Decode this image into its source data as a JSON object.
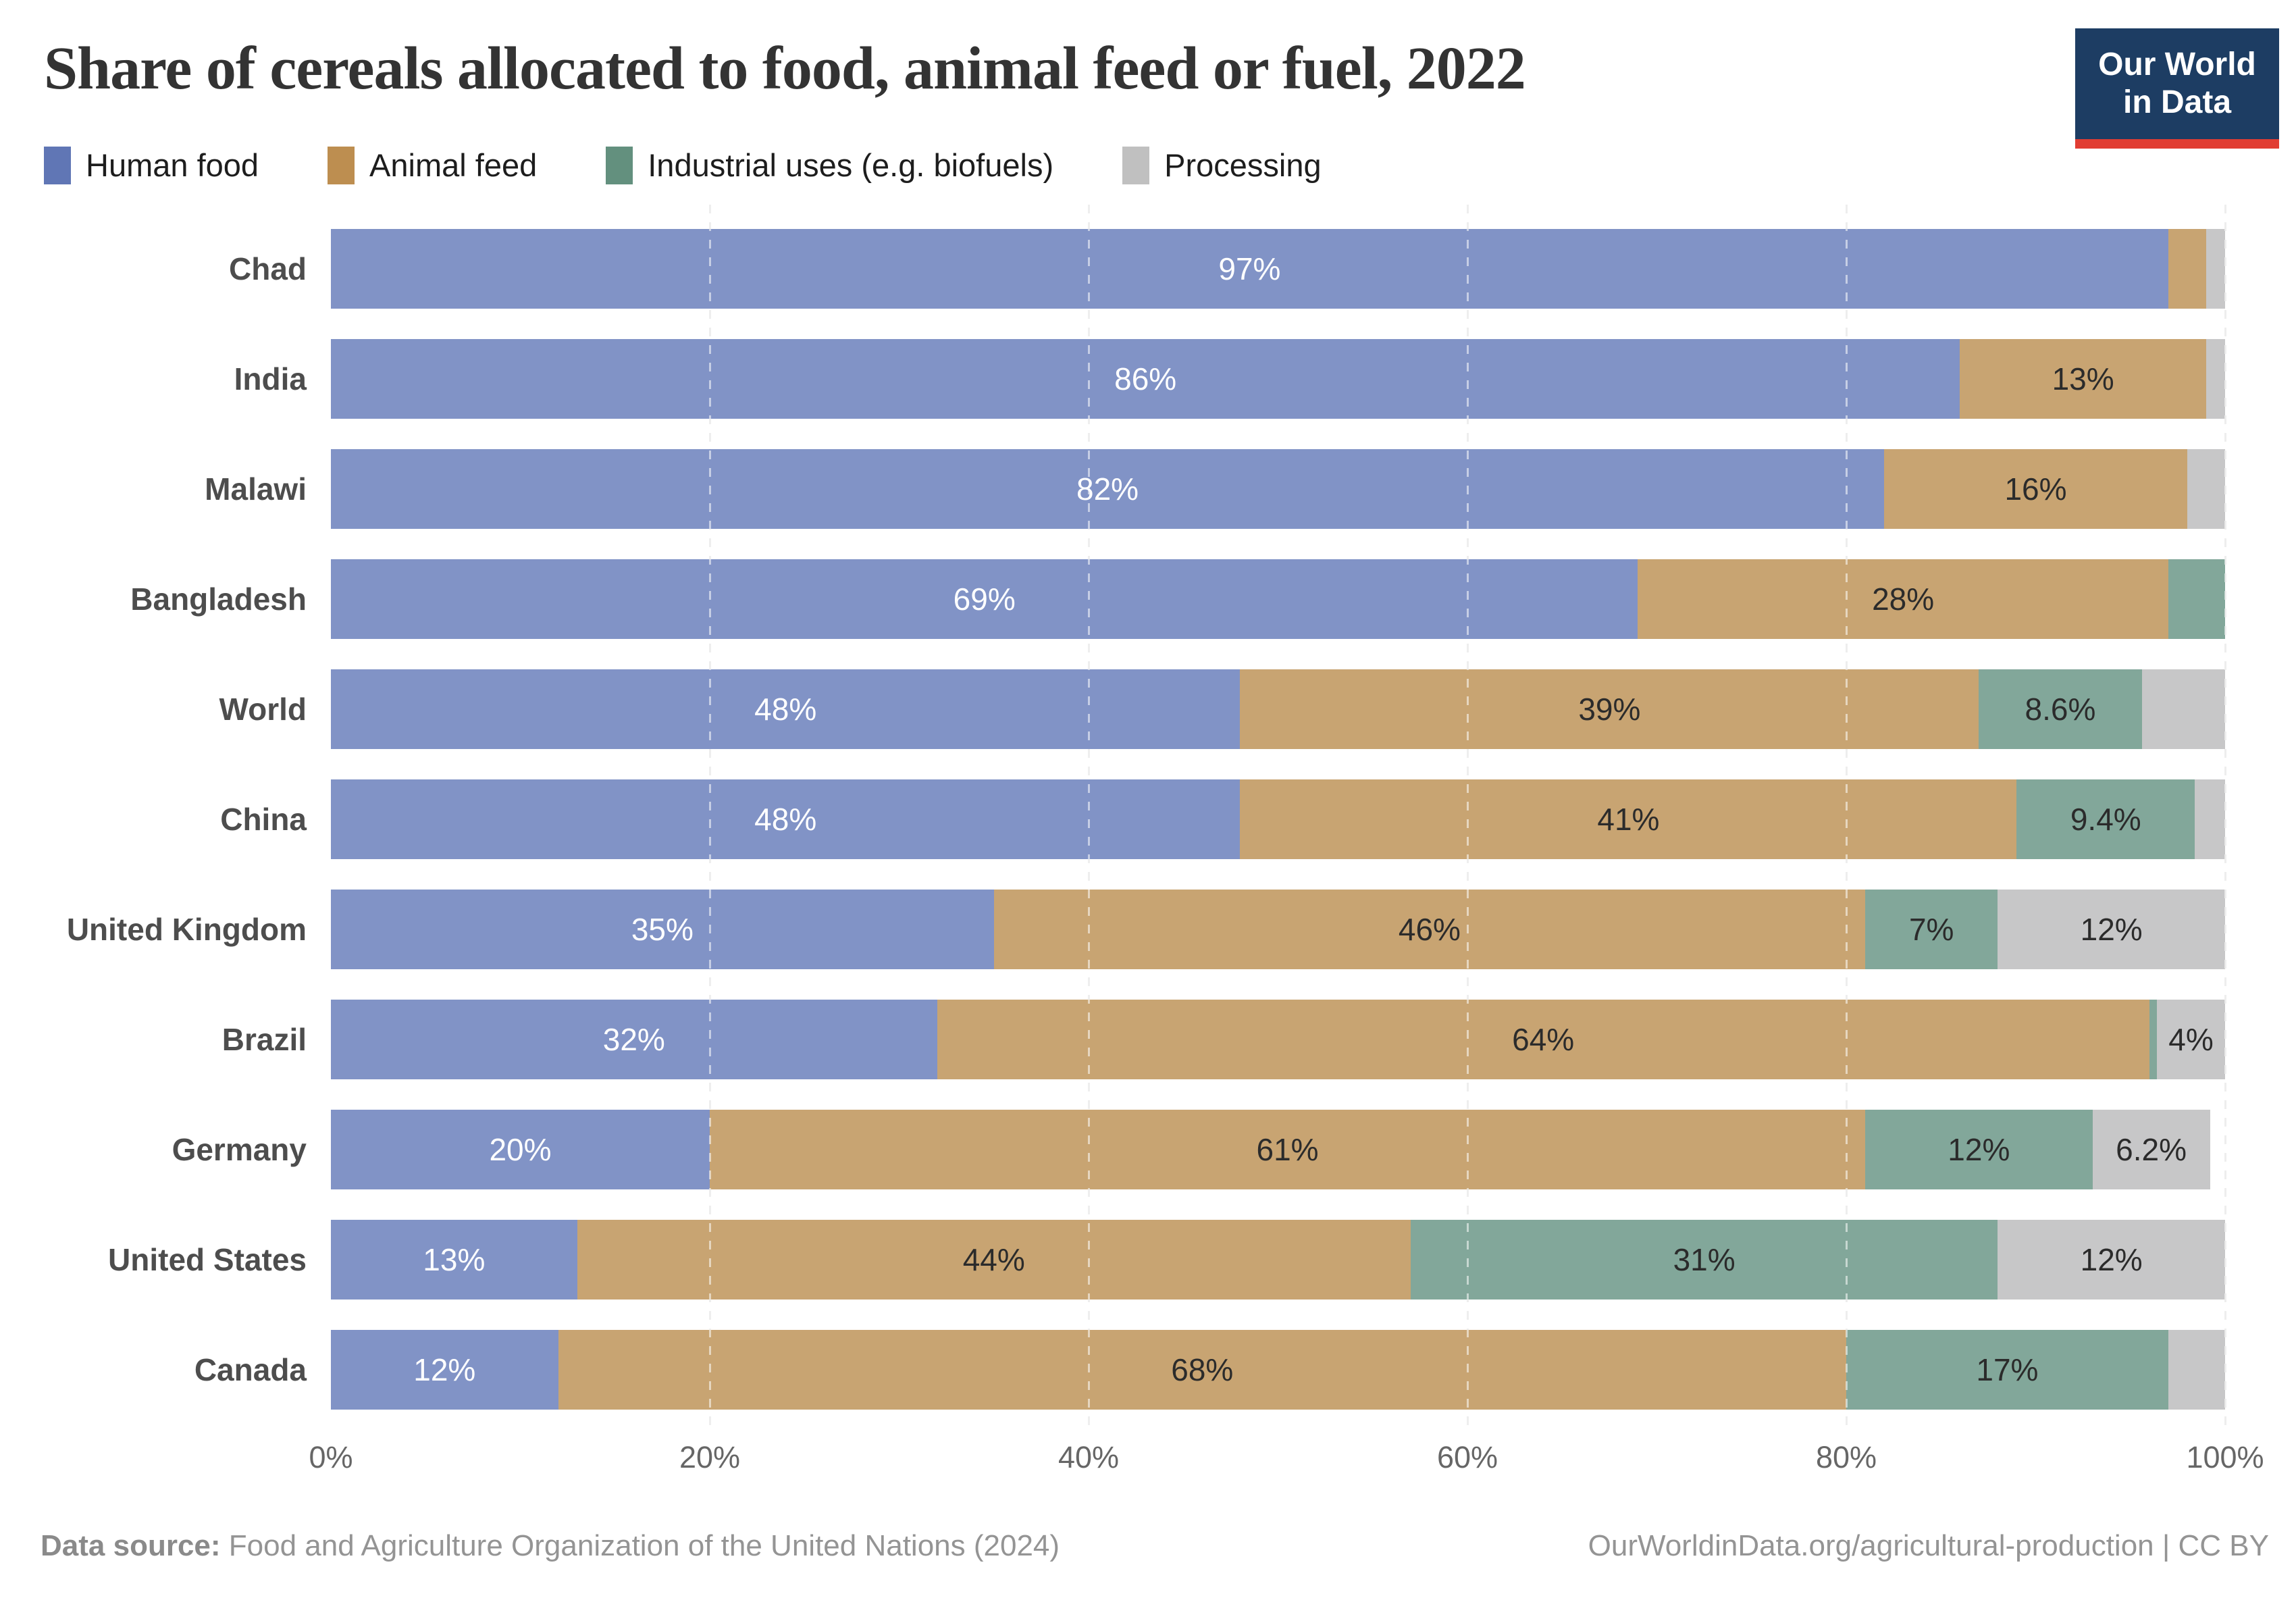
{
  "title": "Share of cereals allocated to food, animal feed or fuel, 2022",
  "logo": {
    "line1": "Our World",
    "line2": "in Data",
    "bg_color": "#1d3d63",
    "accent_color": "#e13d33"
  },
  "legend": [
    {
      "id": "human-food",
      "label": "Human food",
      "color": "#6076b5"
    },
    {
      "id": "animal-feed",
      "label": "Animal feed",
      "color": "#bd8e50"
    },
    {
      "id": "industrial-uses",
      "label": "Industrial uses (e.g. biofuels)",
      "color": "#63907e"
    },
    {
      "id": "processing",
      "label": "Processing",
      "color": "#c0c0c0"
    }
  ],
  "chart_data": {
    "type": "bar",
    "stacked": true,
    "orientation": "horizontal",
    "title": "Share of cereals allocated to food, animal feed or fuel, 2022",
    "xlim": [
      0,
      100
    ],
    "grid": "dashed-vertical",
    "legend_position": "top",
    "categories": [
      "Chad",
      "India",
      "Malawi",
      "Bangladesh",
      "World",
      "China",
      "United Kingdom",
      "Brazil",
      "Germany",
      "United States",
      "Canada"
    ],
    "series": [
      {
        "id": "human-food",
        "name": "Human food",
        "color": "#8193c6",
        "label_color": "#ffffff",
        "values": [
          97,
          86,
          82,
          69,
          48,
          48,
          35,
          32,
          20,
          13,
          12
        ],
        "labels": [
          "97%",
          "86%",
          "82%",
          "69%",
          "48%",
          "48%",
          "35%",
          "32%",
          "20%",
          "13%",
          "12%"
        ]
      },
      {
        "id": "animal-feed",
        "name": "Animal feed",
        "color": "#c8a472",
        "label_color": "#2b2b2b",
        "values": [
          2,
          13,
          16,
          28,
          39,
          41,
          46,
          64,
          61,
          44,
          68
        ],
        "labels": [
          "",
          "13%",
          "16%",
          "28%",
          "39%",
          "41%",
          "46%",
          "64%",
          "61%",
          "44%",
          "68%"
        ]
      },
      {
        "id": "industrial-uses",
        "name": "Industrial uses (e.g. biofuels)",
        "color": "#82a79a",
        "label_color": "#2b2b2b",
        "values": [
          0,
          0,
          0,
          3,
          8.6,
          9.4,
          7,
          0.4,
          12,
          31,
          17
        ],
        "labels": [
          "",
          "",
          "",
          "",
          "8.6%",
          "9.4%",
          "7%",
          "",
          "12%",
          "31%",
          "17%"
        ]
      },
      {
        "id": "processing",
        "name": "Processing",
        "color": "#c7c7c8",
        "label_color": "#2b2b2b",
        "values": [
          1,
          1,
          2,
          0,
          4.4,
          1.6,
          12,
          3.6,
          6.2,
          12,
          3
        ],
        "labels": [
          "",
          "",
          "",
          "",
          "",
          "",
          "12%",
          "4%",
          "6.2%",
          "12%",
          ""
        ]
      }
    ],
    "ticks": [
      {
        "value": 0,
        "label": "0%"
      },
      {
        "value": 20,
        "label": "20%"
      },
      {
        "value": 40,
        "label": "40%"
      },
      {
        "value": 60,
        "label": "60%"
      },
      {
        "value": 80,
        "label": "80%"
      },
      {
        "value": 100,
        "label": "100%"
      }
    ]
  },
  "footer": {
    "source_bold": "Data source:",
    "source_rest": " Food and Agriculture Organization of the United Nations (2024)",
    "right": "OurWorldinData.org/agricultural-production | CC BY"
  }
}
